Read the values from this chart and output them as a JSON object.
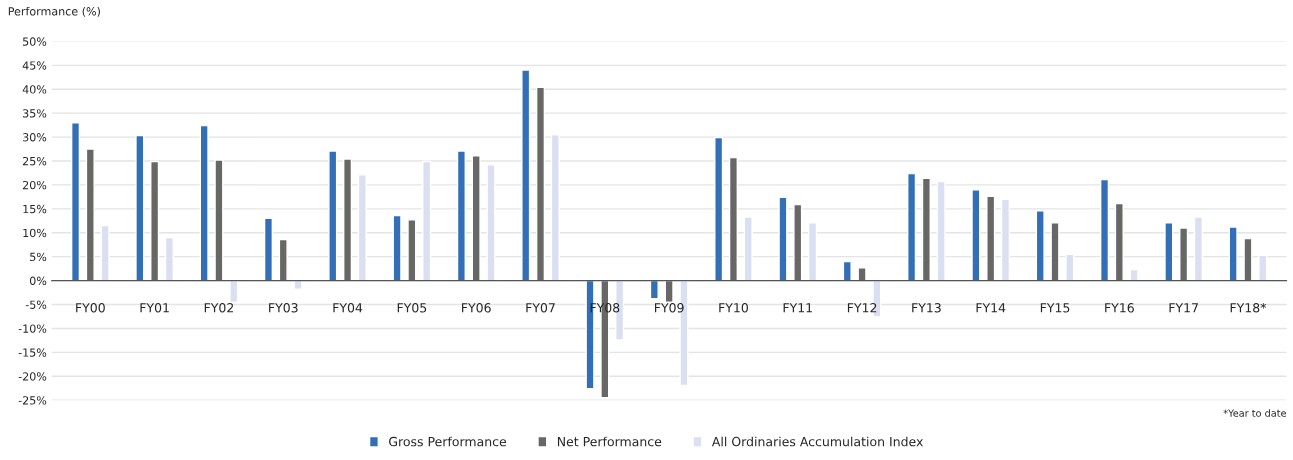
{
  "chart_data": {
    "type": "bar",
    "ylabel": "Performance (%)",
    "categories": [
      "FY00",
      "FY01",
      "FY02",
      "FY03",
      "FY04",
      "FY05",
      "FY06",
      "FY07",
      "FY08",
      "FY09",
      "FY10",
      "FY11",
      "FY12",
      "FY13",
      "FY14",
      "FY15",
      "FY16",
      "FY17",
      "FY18*"
    ],
    "series": [
      {
        "name": "Gross Performance",
        "color": "#336fb7",
        "values": [
          33.0,
          30.3,
          32.4,
          13.0,
          27.1,
          13.6,
          27.1,
          44.0,
          -22.6,
          -3.8,
          29.9,
          17.4,
          4.0,
          22.4,
          19.0,
          14.6,
          21.1,
          12.1,
          11.2
        ]
      },
      {
        "name": "Net Performance",
        "color": "#676866",
        "values": [
          27.5,
          24.9,
          25.2,
          8.6,
          25.4,
          12.7,
          26.1,
          40.4,
          -24.5,
          -4.5,
          25.7,
          15.9,
          2.7,
          21.4,
          17.6,
          12.1,
          16.1,
          11.0,
          8.8
        ]
      },
      {
        "name": "All Ordinaries Accumulation Index",
        "color": "#dadff1",
        "values": [
          11.5,
          9.0,
          -4.5,
          -1.8,
          22.1,
          24.9,
          24.2,
          30.5,
          -12.4,
          -21.9,
          13.3,
          12.1,
          -7.6,
          20.7,
          17.0,
          5.5,
          2.3,
          13.3,
          5.3
        ]
      }
    ],
    "ylim": [
      -25,
      50
    ],
    "yticks": [
      {
        "value": -25,
        "label": "-25%"
      },
      {
        "value": -20,
        "label": "-20%"
      },
      {
        "value": -15,
        "label": "-15%"
      },
      {
        "value": -10,
        "label": "-10%"
      },
      {
        "value": -5,
        "label": "-5%"
      },
      {
        "value": 0,
        "label": "0%"
      },
      {
        "value": 5,
        "label": "5%"
      },
      {
        "value": 10,
        "label": "10%"
      },
      {
        "value": 15,
        "label": "15%"
      },
      {
        "value": 20,
        "label": "20%"
      },
      {
        "value": 25,
        "label": "25%"
      },
      {
        "value": 30,
        "label": "30%"
      },
      {
        "value": 35,
        "label": "35%"
      },
      {
        "value": 40,
        "label": "40%"
      },
      {
        "value": 45,
        "label": "45%"
      },
      {
        "value": 50,
        "label": "50%"
      }
    ],
    "grid": "y",
    "legend": "bottom",
    "annotations": [
      "*Year to date"
    ]
  }
}
